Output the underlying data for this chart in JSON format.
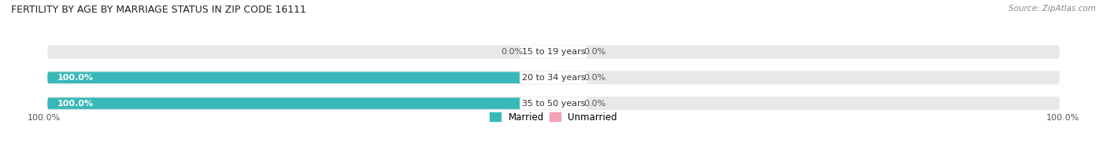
{
  "title": "FERTILITY BY AGE BY MARRIAGE STATUS IN ZIP CODE 16111",
  "source": "Source: ZipAtlas.com",
  "categories": [
    "15 to 19 years",
    "20 to 34 years",
    "35 to 50 years"
  ],
  "married_values": [
    0.0,
    100.0,
    100.0
  ],
  "unmarried_values": [
    0.0,
    0.0,
    0.0
  ],
  "married_color": "#38b8b8",
  "unmarried_color": "#f4a0b5",
  "bar_bg_color": "#e8e8e8",
  "legend_married": "Married",
  "legend_unmarried": "Unmarried",
  "x_left_label": "100.0%",
  "x_right_label": "100.0%",
  "title_fontsize": 9,
  "source_fontsize": 7.5,
  "bar_height": 0.52,
  "figsize": [
    14.06,
    1.96
  ],
  "dpi": 100,
  "bar_gap": 0.18
}
